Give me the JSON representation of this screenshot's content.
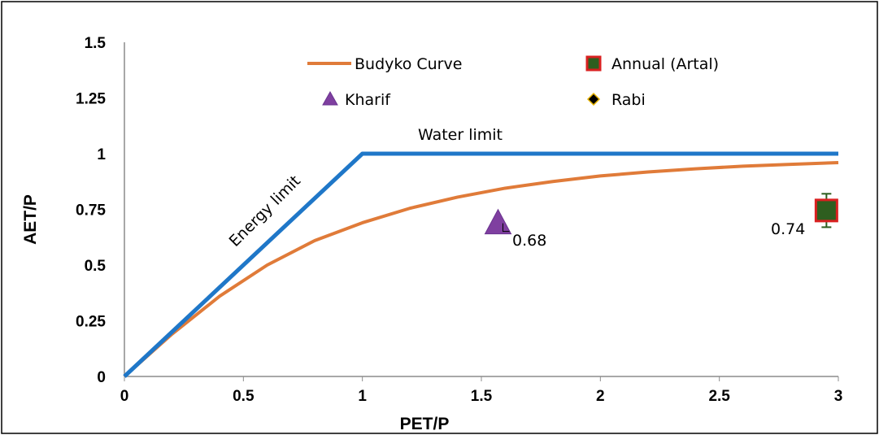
{
  "chart_data": {
    "type": "line",
    "xlabel": "PET/P",
    "ylabel": "AET/P",
    "xlim": [
      0,
      3
    ],
    "ylim": [
      0,
      1.5
    ],
    "x_ticks": [
      "0",
      "0.5",
      "1",
      "1.5",
      "2",
      "2.5",
      "3"
    ],
    "y_ticks": [
      "0",
      "0.25",
      "0.5",
      "0.75",
      "1",
      "1.25",
      "1.5"
    ],
    "grid": false,
    "legend_position": "top",
    "series": [
      {
        "name": "Budyko Curve",
        "kind": "line",
        "color": "#E07B39",
        "x": [
          0,
          0.2,
          0.4,
          0.6,
          0.8,
          1.0,
          1.2,
          1.4,
          1.6,
          1.8,
          2.0,
          2.2,
          2.4,
          2.6,
          2.8,
          3.0
        ],
        "y": [
          0,
          0.19,
          0.36,
          0.5,
          0.61,
          0.69,
          0.755,
          0.805,
          0.845,
          0.875,
          0.9,
          0.918,
          0.932,
          0.944,
          0.952,
          0.96
        ]
      },
      {
        "name": "Limits",
        "kind": "line",
        "legend": false,
        "color": "#1F77C8",
        "x": [
          0,
          1,
          3
        ],
        "y": [
          0,
          1,
          1
        ]
      },
      {
        "name": "Annual (Artal)",
        "kind": "marker",
        "marker": "square",
        "color": "#2E5E1F",
        "edge_color": "#D92020",
        "x": [
          2.95
        ],
        "y": [
          0.745
        ],
        "error": 0.075
      },
      {
        "name": "Kharif",
        "kind": "marker",
        "marker": "triangle",
        "color": "#7F3FA0",
        "x": [
          1.57
        ],
        "y": [
          0.68
        ]
      },
      {
        "name": "Rabi",
        "kind": "marker",
        "marker": "diamond",
        "color": "#000000",
        "edge_color": "#E8B400",
        "x": [],
        "y": []
      }
    ],
    "annotations": [
      {
        "text": "Water limit"
      },
      {
        "text": "Energy limit"
      },
      {
        "text": "0.68"
      },
      {
        "text": "0.74"
      }
    ]
  }
}
